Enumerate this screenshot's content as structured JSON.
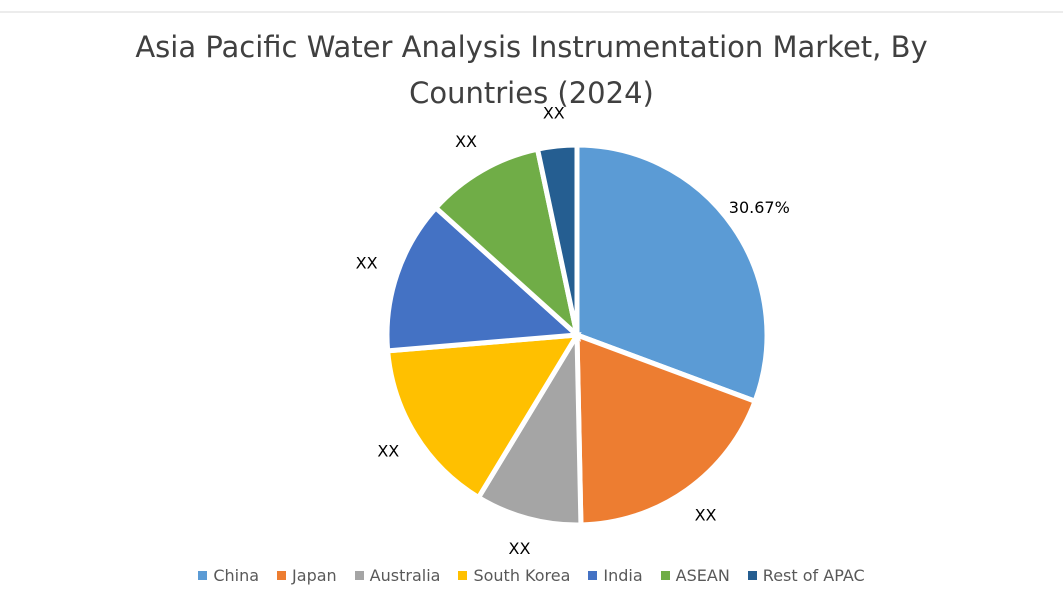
{
  "chart_data": {
    "type": "pie",
    "title": "Asia Pacific Water Analysis Instrumentation Market, By Countries (2024)",
    "categories": [
      "China",
      "Japan",
      "Australia",
      "South Korea",
      "India",
      "ASEAN",
      "Rest of APAC"
    ],
    "values": [
      30.67,
      19,
      9,
      15,
      13,
      10,
      3.33
    ],
    "value_labels": [
      "30.67%",
      "XX",
      "XX",
      "XX",
      "XX",
      "XX",
      "XX"
    ],
    "colors": [
      "#5b9bd5",
      "#ed7d31",
      "#a5a5a5",
      "#ffc000",
      "#4472c4",
      "#70ad47",
      "#255e91"
    ],
    "legend": "bottom"
  }
}
